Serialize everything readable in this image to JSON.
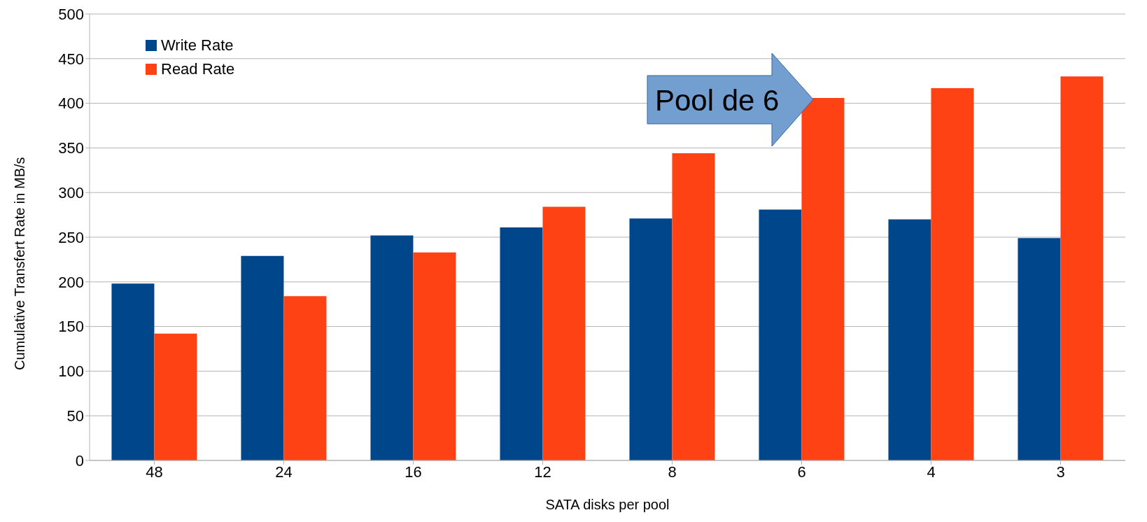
{
  "chart_data": {
    "type": "bar",
    "categories": [
      "48",
      "24",
      "16",
      "12",
      "8",
      "6",
      "4",
      "3"
    ],
    "series": [
      {
        "name": "Write Rate",
        "color": "#00468b",
        "values": [
          198,
          229,
          252,
          261,
          271,
          281,
          270,
          249
        ]
      },
      {
        "name": "Read Rate",
        "color": "#ff4213",
        "values": [
          142,
          184,
          233,
          284,
          344,
          406,
          417,
          430
        ]
      }
    ],
    "xlabel": "SATA disks per pool",
    "ylabel": "Cumulative Transfert Rate in MB/s",
    "ylim": [
      0,
      500
    ],
    "yticks": [
      0,
      50,
      100,
      150,
      200,
      250,
      300,
      350,
      400,
      450,
      500
    ],
    "grid": "y",
    "legend": "top left",
    "annotations": [
      "Pool de 6"
    ]
  }
}
